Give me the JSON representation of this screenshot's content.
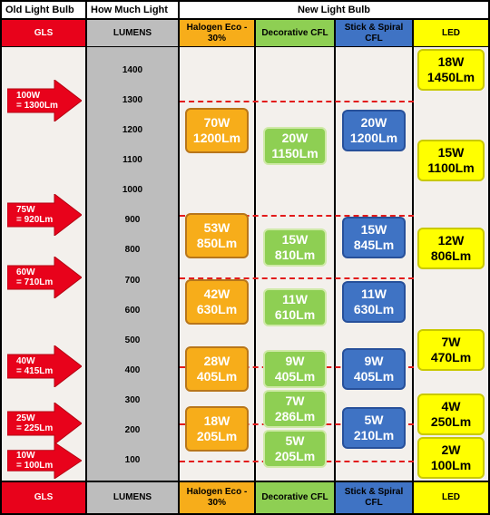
{
  "header": {
    "old_bulb": "Old Light Bulb",
    "how_much_light": "How Much Light",
    "new_bulb": "New Light Bulb"
  },
  "categories": {
    "gls": "GLS",
    "lumens": "LUMENS",
    "halogen": "Halogen Eco - 30%",
    "cfl_deco": "Decorative CFL",
    "cfl_stick": "Stick & Spiral CFL",
    "led": "LED"
  },
  "colors": {
    "gls": "#e8021b",
    "lumens": "#bdbdbd",
    "halogen": "#f7ad1a",
    "cfl_deco": "#8ecf53",
    "cfl_stick": "#3f73c4",
    "led": "#ffff00"
  },
  "chart_data": {
    "type": "table",
    "y_ticks": [
      1400,
      1300,
      1200,
      1100,
      1000,
      900,
      800,
      700,
      600,
      500,
      400,
      300,
      200,
      100
    ],
    "ylim": [
      50,
      1470
    ],
    "thresholds": [
      1300,
      920,
      710,
      415,
      225,
      100
    ],
    "gls": [
      {
        "watts": "100W",
        "lumens_label": "= 1300Lm",
        "lumens": 1300
      },
      {
        "watts": "75W",
        "lumens_label": "= 920Lm",
        "lumens": 920
      },
      {
        "watts": "60W",
        "lumens_label": "= 710Lm",
        "lumens": 710
      },
      {
        "watts": "40W",
        "lumens_label": "= 415Lm",
        "lumens": 415
      },
      {
        "watts": "25W",
        "lumens_label": "= 225Lm",
        "lumens": 225
      },
      {
        "watts": "10W",
        "lumens_label": "= 100Lm",
        "lumens": 100
      }
    ],
    "halogen": [
      {
        "watts": "70W",
        "lumens_label": "1200Lm",
        "lumens": 1200
      },
      {
        "watts": "53W",
        "lumens_label": "850Lm",
        "lumens": 850
      },
      {
        "watts": "42W",
        "lumens_label": "630Lm",
        "lumens": 630
      },
      {
        "watts": "28W",
        "lumens_label": "405Lm",
        "lumens": 405
      },
      {
        "watts": "18W",
        "lumens_label": "205Lm",
        "lumens": 205
      }
    ],
    "cfl_deco": [
      {
        "watts": "20W",
        "lumens_label": "1150Lm",
        "lumens": 1150
      },
      {
        "watts": "15W",
        "lumens_label": "810Lm",
        "lumens": 810
      },
      {
        "watts": "11W",
        "lumens_label": "610Lm",
        "lumens": 610
      },
      {
        "watts": "9W",
        "lumens_label": "405Lm",
        "lumens": 405
      },
      {
        "watts": "7W",
        "lumens_label": "286Lm",
        "lumens": 286
      },
      {
        "watts": "5W",
        "lumens_label": "205Lm",
        "lumens": 205
      }
    ],
    "cfl_stick": [
      {
        "watts": "20W",
        "lumens_label": "1200Lm",
        "lumens": 1200
      },
      {
        "watts": "15W",
        "lumens_label": "845Lm",
        "lumens": 845
      },
      {
        "watts": "11W",
        "lumens_label": "630Lm",
        "lumens": 630
      },
      {
        "watts": "9W",
        "lumens_label": "405Lm",
        "lumens": 405
      },
      {
        "watts": "5W",
        "lumens_label": "210Lm",
        "lumens": 210
      }
    ],
    "led": [
      {
        "watts": "18W",
        "lumens_label": "1450Lm",
        "lumens": 1450
      },
      {
        "watts": "15W",
        "lumens_label": "1100Lm",
        "lumens": 1100
      },
      {
        "watts": "12W",
        "lumens_label": "806Lm",
        "lumens": 806
      },
      {
        "watts": "7W",
        "lumens_label": "470Lm",
        "lumens": 470
      },
      {
        "watts": "4W",
        "lumens_label": "250Lm",
        "lumens": 250
      },
      {
        "watts": "2W",
        "lumens_label": "100Lm",
        "lumens": 100
      }
    ]
  }
}
